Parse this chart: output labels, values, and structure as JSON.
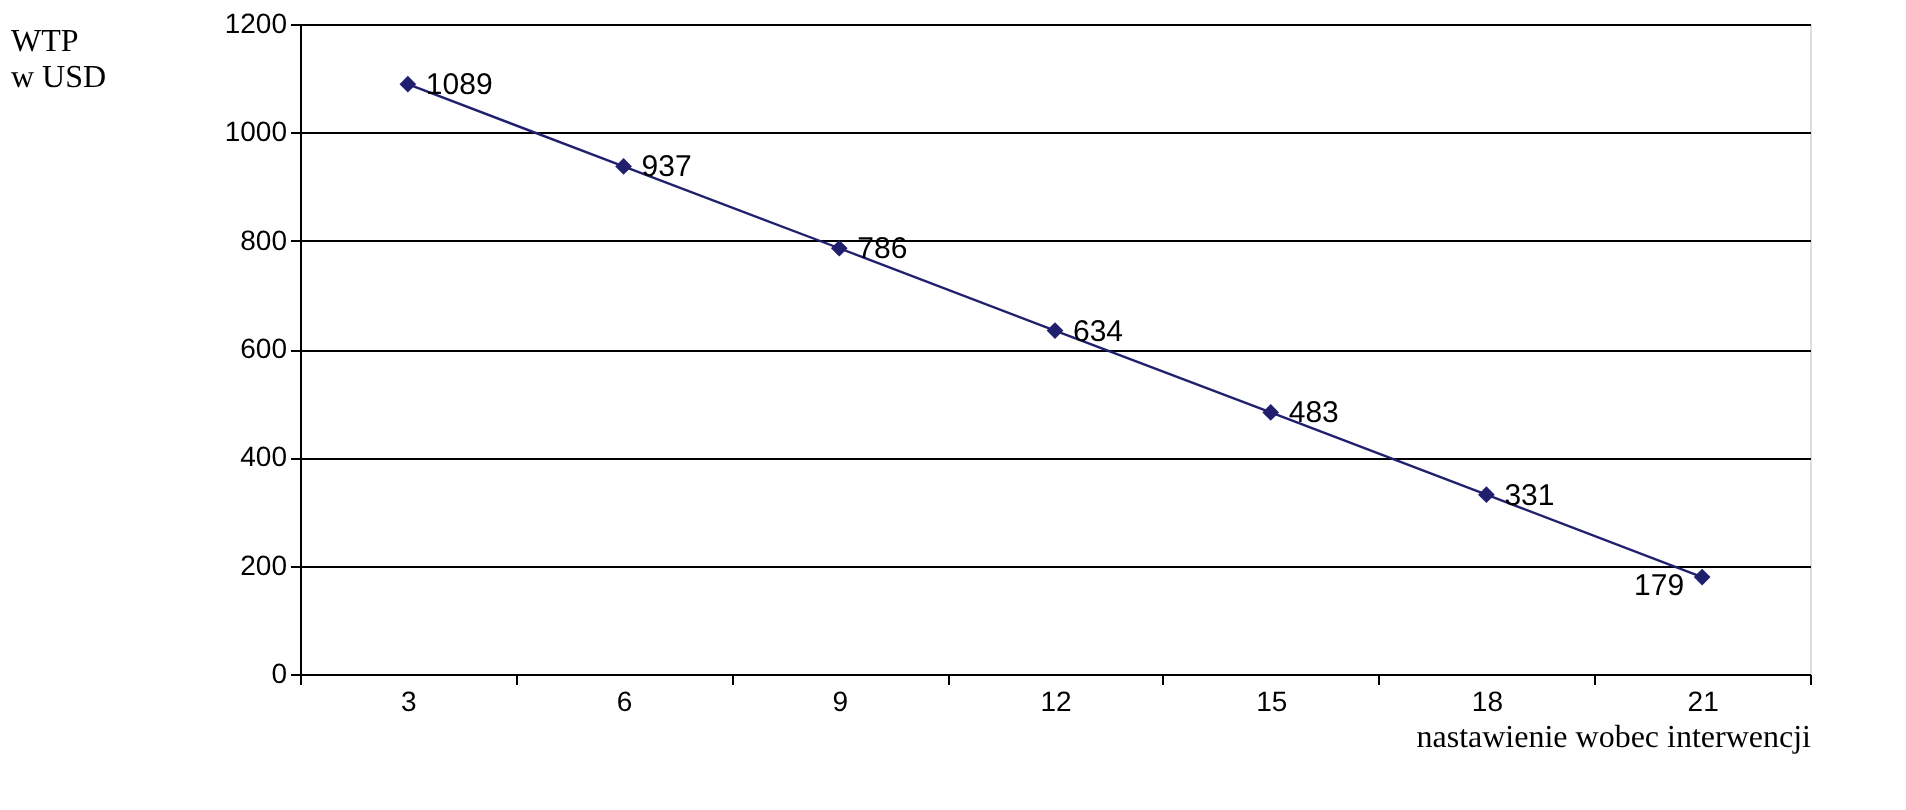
{
  "chart_data": {
    "type": "line",
    "xlabel": "nastawienie wobec interwencji",
    "ylabel": "WTP\nw USD",
    "categories": [
      "3",
      "6",
      "9",
      "12",
      "15",
      "18",
      "21"
    ],
    "series": [
      {
        "color": "#1f1f6e",
        "values": [
          1089,
          937,
          786,
          634,
          483,
          331,
          179
        ]
      }
    ],
    "ylim": [
      0,
      1200
    ],
    "yticks": [
      0,
      200,
      400,
      600,
      800,
      1000,
      1200
    ],
    "grid": "y",
    "marker": "diamond",
    "line_style": "solid",
    "data_labels": true,
    "legend": false
  }
}
